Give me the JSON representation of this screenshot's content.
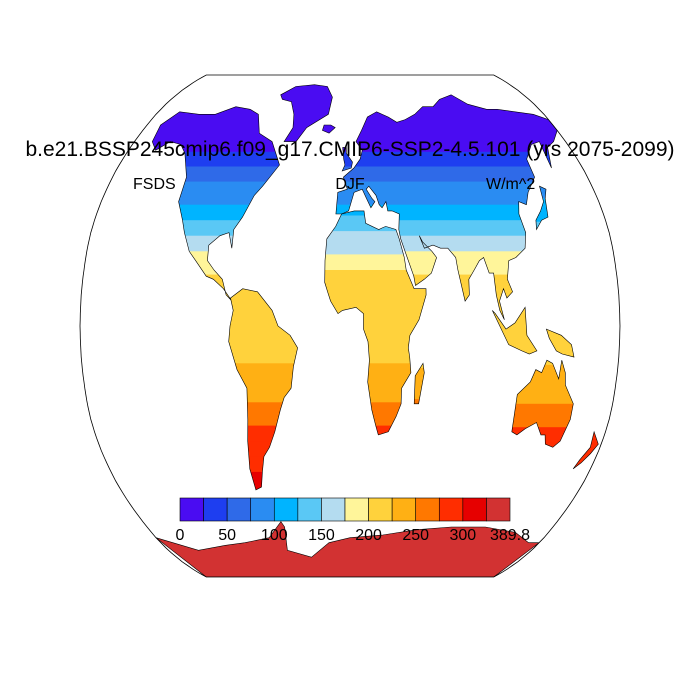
{
  "title": "b.e21.BSSP245cmip6.f09_g17.CMIP6-SSP2-4.5.101 (yrs 2075-2099)",
  "left_string": "FSDS",
  "center_string": "DJF",
  "right_string": "W/m^2",
  "colorbar": {
    "colors": [
      "#4a0cf2",
      "#1e3ef0",
      "#2f6ae8",
      "#2a8cf2",
      "#00b4ff",
      "#5ac8f5",
      "#b4dcf0",
      "#fff59a",
      "#ffd23c",
      "#ffb014",
      "#ff7800",
      "#ff2d00",
      "#e60000",
      "#d23232"
    ],
    "labels": [
      "0",
      "50",
      "100",
      "150",
      "200",
      "250",
      "300",
      "389.8"
    ]
  },
  "chart_data": {
    "type": "heatmap",
    "projection": "Robinson",
    "variable": "FSDS",
    "season": "DJF",
    "units": "W/m^2",
    "value_range": [
      0,
      389.8
    ],
    "bands_by_latitude": [
      {
        "lat": 80,
        "value": 0
      },
      {
        "lat": 60,
        "value": 15
      },
      {
        "lat": 50,
        "value": 60
      },
      {
        "lat": 40,
        "value": 110
      },
      {
        "lat": 30,
        "value": 165
      },
      {
        "lat": 20,
        "value": 215
      },
      {
        "lat": 10,
        "value": 240
      },
      {
        "lat": 0,
        "value": 235
      },
      {
        "lat": -20,
        "value": 260
      },
      {
        "lat": -30,
        "value": 300
      },
      {
        "lat": -40,
        "value": 320
      },
      {
        "lat": -75,
        "value": 385
      }
    ]
  }
}
